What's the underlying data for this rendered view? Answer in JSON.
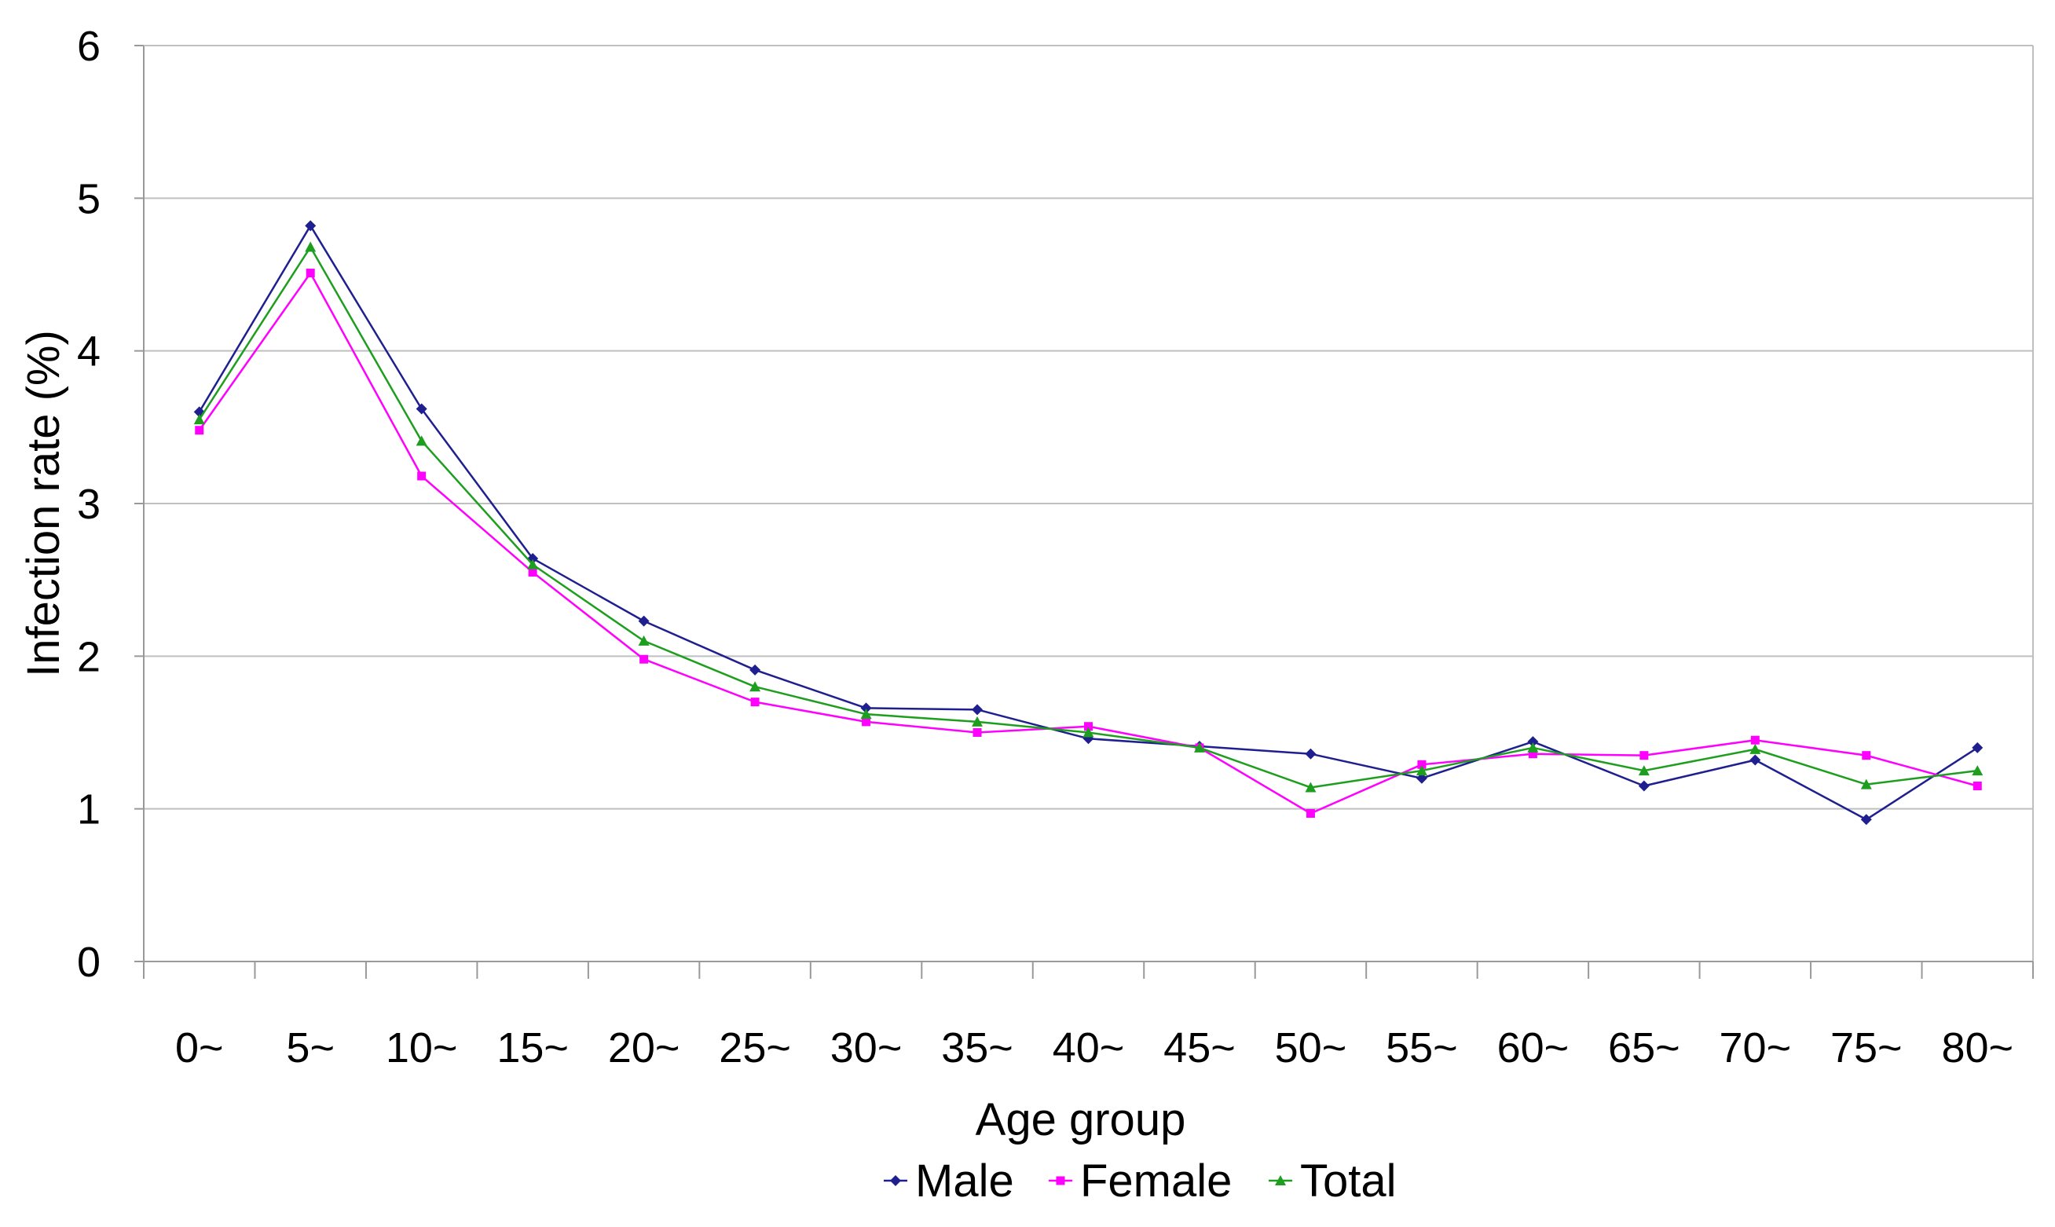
{
  "chart_data": {
    "type": "line",
    "title": "",
    "xlabel": "Age group",
    "ylabel": "Infection rate (%)",
    "ylim": [
      0,
      6
    ],
    "yticks": [
      0,
      1,
      2,
      3,
      4,
      5,
      6
    ],
    "grid": "horizontal",
    "legend_position": "bottom-center",
    "categories": [
      "0~",
      "5~",
      "10~",
      "15~",
      "20~",
      "25~",
      "30~",
      "35~",
      "40~",
      "45~",
      "50~",
      "55~",
      "60~",
      "65~",
      "70~",
      "75~",
      "80~"
    ],
    "series": [
      {
        "name": "Male",
        "color": "#1F1F8F",
        "marker": "diamond",
        "values": [
          3.6,
          4.82,
          3.62,
          2.64,
          2.23,
          1.91,
          1.66,
          1.65,
          1.46,
          1.41,
          1.36,
          1.2,
          1.44,
          1.15,
          1.32,
          0.93,
          1.4
        ]
      },
      {
        "name": "Female",
        "color": "#FF00FF",
        "marker": "square",
        "values": [
          3.48,
          4.51,
          3.18,
          2.55,
          1.98,
          1.7,
          1.57,
          1.5,
          1.54,
          1.4,
          0.97,
          1.29,
          1.36,
          1.35,
          1.45,
          1.35,
          1.15
        ]
      },
      {
        "name": "Total",
        "color": "#1E9E1E",
        "marker": "triangle",
        "values": [
          3.55,
          4.68,
          3.41,
          2.6,
          2.1,
          1.8,
          1.62,
          1.57,
          1.5,
          1.4,
          1.14,
          1.25,
          1.4,
          1.25,
          1.39,
          1.16,
          1.25
        ]
      }
    ]
  }
}
